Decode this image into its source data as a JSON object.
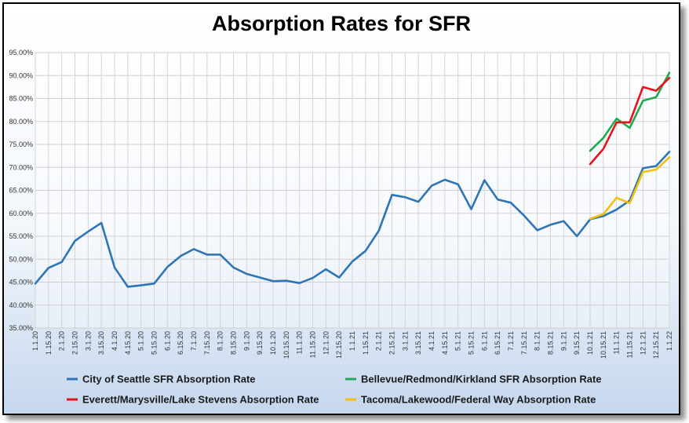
{
  "title": "Absorption Rates for SFR",
  "chart_data": {
    "type": "line",
    "title": "Absorption Rates for SFR",
    "ylim": [
      35,
      95
    ],
    "y_step": 5,
    "y_tick_format": "percent_2dp",
    "grid": true,
    "legend_position": "bottom",
    "x": [
      "1.1.20",
      "1.15.20",
      "2.1.20",
      "2.15.20",
      "3.1.20",
      "3.15.20",
      "4.1.20",
      "4.15.20",
      "5.1.20",
      "5.15.20",
      "6.1.20",
      "6.15.20",
      "7.1.20",
      "7.15.20",
      "8.1.20",
      "8.15.20",
      "9.1.20",
      "9.15.20",
      "10.1.20",
      "10.15.20",
      "11.1.20",
      "11.15.20",
      "12.1.20",
      "12.15.20",
      "1.1.21",
      "1.15.21",
      "2.1.21",
      "2.15.21",
      "3.1.21",
      "3.15.21",
      "4.1.21",
      "4.15.21",
      "5.1.21",
      "5.15.21",
      "6.1.21",
      "6.15.21",
      "7.1.21",
      "7.15.21",
      "8.1.21",
      "8.15.21",
      "9.1.21",
      "9.15.21",
      "10.1.21",
      "10.15.21",
      "11.1.21",
      "11.15.21",
      "12.1.21",
      "12.15.21",
      "1.1.22"
    ],
    "series": [
      {
        "name": "City of Seattle SFR Absorption Rate",
        "color": "#2e75b6",
        "values": [
          44.7,
          48.1,
          49.4,
          54.0,
          56.0,
          57.9,
          48.2,
          44.0,
          44.3,
          44.7,
          48.3,
          50.7,
          52.2,
          51.0,
          51.0,
          48.2,
          46.8,
          46.0,
          45.2,
          45.3,
          44.8,
          45.9,
          47.8,
          46.0,
          49.5,
          51.8,
          56.2,
          64.0,
          63.5,
          62.5,
          66.0,
          67.3,
          66.3,
          60.9,
          67.2,
          63.0,
          62.3,
          59.5,
          56.3,
          57.5,
          58.3,
          55.0,
          58.7,
          59.4,
          60.8,
          62.8,
          69.8,
          70.3,
          73.4
        ]
      },
      {
        "name": "Bellevue/Redmond/Kirkland SFR Absorption Rate",
        "color": "#1faa4f",
        "values": [
          null,
          null,
          null,
          null,
          null,
          null,
          null,
          null,
          null,
          null,
          null,
          null,
          null,
          null,
          null,
          null,
          null,
          null,
          null,
          null,
          null,
          null,
          null,
          null,
          null,
          null,
          null,
          null,
          null,
          null,
          null,
          null,
          null,
          null,
          null,
          null,
          null,
          null,
          null,
          null,
          null,
          null,
          73.6,
          76.4,
          80.6,
          78.6,
          84.5,
          85.3,
          90.6
        ]
      },
      {
        "name": "Everett/Marysville/Lake Stevens Absorption Rate",
        "color": "#e8131a",
        "values": [
          null,
          null,
          null,
          null,
          null,
          null,
          null,
          null,
          null,
          null,
          null,
          null,
          null,
          null,
          null,
          null,
          null,
          null,
          null,
          null,
          null,
          null,
          null,
          null,
          null,
          null,
          null,
          null,
          null,
          null,
          null,
          null,
          null,
          null,
          null,
          null,
          null,
          null,
          null,
          null,
          null,
          null,
          70.7,
          74.0,
          79.8,
          79.8,
          87.5,
          86.7,
          89.5
        ]
      },
      {
        "name": "Tacoma/Lakewood/Federal Way Absorption Rate",
        "color": "#f2c010",
        "values": [
          null,
          null,
          null,
          null,
          null,
          null,
          null,
          null,
          null,
          null,
          null,
          null,
          null,
          null,
          null,
          null,
          null,
          null,
          null,
          null,
          null,
          null,
          null,
          null,
          null,
          null,
          null,
          null,
          null,
          null,
          null,
          null,
          null,
          null,
          null,
          null,
          null,
          null,
          null,
          null,
          null,
          null,
          58.8,
          59.8,
          63.4,
          62.2,
          69.0,
          69.5,
          72.2
        ]
      }
    ]
  }
}
